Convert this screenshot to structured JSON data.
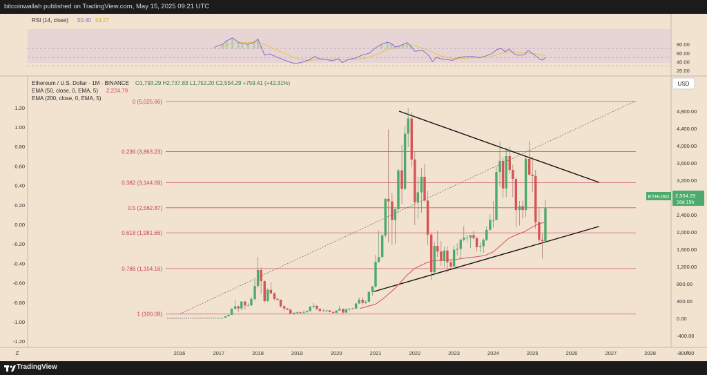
{
  "header": {
    "published_text": "bitcoinwallah published on TradingView.com, May 15, 2025 09:21 UTC"
  },
  "footer": {
    "brand": "TradingView"
  },
  "rsi_legend": {
    "name": "RSI (14, close)",
    "v1": "50.40",
    "v2": "54.27"
  },
  "price_legend": {
    "symbol": "Ethereum / U.S. Dollar · 1M · BINANCE",
    "ohlc": "O1,793.29  H2,737.83  L1,752.20  C2,554.29  +759.41 (+42.31%)",
    "ema50": "EMA (50, close, 0, EMA, 5)",
    "ema50_value": "2,224.79",
    "ema200": "EMA (200, close, 0, EMA, 5)"
  },
  "currency_button": "USD",
  "price_tag": {
    "symbol": "ETHUSD",
    "price": "2,554.29",
    "countdown": "16d 15h"
  },
  "corner_z": "Z",
  "corner_a": "A",
  "colors": {
    "up": "#4cab6c",
    "down": "#d65454",
    "fib": "#c8425e",
    "ema": "#d24f63",
    "rsi": "#8a6bc4",
    "rsi_ma": "#e6c34c",
    "bg": "#f2e2d0"
  },
  "chart_data": {
    "type": "candlestick",
    "y_right": {
      "min": -800,
      "max": 4800,
      "ticks": [
        "4,800.00",
        "4,400.00",
        "4,000.00",
        "3,600.00",
        "3,200.00",
        "2,800.00",
        "2,400.00",
        "2,000.00",
        "1,600.00",
        "1,200.00",
        "800.00",
        "400.00",
        "0.00",
        "-400.00",
        "-800.00"
      ]
    },
    "y_left": {
      "ticks": [
        "1.20",
        "1.00",
        "0.80",
        "0.60",
        "0.40",
        "0.20",
        "0.00",
        "-0.20",
        "-0.40",
        "-0.60",
        "-0.80",
        "-1.00",
        "-1.20"
      ]
    },
    "x_ticks": [
      "2016",
      "2017",
      "2018",
      "2019",
      "2020",
      "2021",
      "2022",
      "2023",
      "2024",
      "2025",
      "2026",
      "2027",
      "2028"
    ],
    "fib_levels": [
      {
        "ratio": 0,
        "price": 5025.66,
        "label": "0 (5,025.66)"
      },
      {
        "ratio": 0.236,
        "price": 3863.23,
        "label": "0.236 (3,863.23)"
      },
      {
        "ratio": 0.382,
        "price": 3144.09,
        "label": "0.382 (3,144.09)"
      },
      {
        "ratio": 0.5,
        "price": 2562.87,
        "label": "0.5 (2,562.87)"
      },
      {
        "ratio": 0.618,
        "price": 1981.66,
        "label": "0.618 (1,981.66)"
      },
      {
        "ratio": 0.786,
        "price": 1154.16,
        "label": "0.786 (1,154.16)"
      },
      {
        "ratio": 1,
        "price": 100.08,
        "label": "1 (100.08)"
      }
    ],
    "candles": [
      [
        2017.0,
        8,
        10,
        8,
        10
      ],
      [
        2017.08,
        10,
        17,
        9,
        16
      ],
      [
        2017.17,
        16,
        55,
        15,
        50
      ],
      [
        2017.25,
        50,
        100,
        45,
        80
      ],
      [
        2017.33,
        80,
        230,
        80,
        225
      ],
      [
        2017.42,
        225,
        420,
        200,
        280
      ],
      [
        2017.5,
        280,
        300,
        150,
        230
      ],
      [
        2017.58,
        230,
        400,
        190,
        390
      ],
      [
        2017.67,
        390,
        400,
        200,
        300
      ],
      [
        2017.75,
        300,
        350,
        290,
        300
      ],
      [
        2017.83,
        300,
        500,
        290,
        450
      ],
      [
        2017.92,
        450,
        900,
        410,
        750
      ],
      [
        2018.0,
        750,
        1420,
        700,
        1120
      ],
      [
        2018.08,
        1120,
        1180,
        570,
        860
      ],
      [
        2018.17,
        860,
        880,
        370,
        400
      ],
      [
        2018.25,
        400,
        700,
        380,
        660
      ],
      [
        2018.33,
        660,
        830,
        560,
        580
      ],
      [
        2018.42,
        580,
        600,
        420,
        450
      ],
      [
        2018.5,
        450,
        480,
        420,
        430
      ],
      [
        2018.58,
        430,
        440,
        250,
        280
      ],
      [
        2018.67,
        280,
        300,
        170,
        230
      ],
      [
        2018.75,
        230,
        240,
        190,
        200
      ],
      [
        2018.83,
        200,
        220,
        100,
        110
      ],
      [
        2018.92,
        110,
        140,
        80,
        130
      ],
      [
        2019.0,
        130,
        160,
        100,
        140
      ],
      [
        2019.08,
        140,
        160,
        100,
        135
      ],
      [
        2019.17,
        135,
        190,
        130,
        140
      ],
      [
        2019.25,
        140,
        190,
        140,
        170
      ],
      [
        2019.33,
        170,
        290,
        160,
        270
      ],
      [
        2019.42,
        270,
        360,
        230,
        290
      ],
      [
        2019.5,
        290,
        310,
        190,
        220
      ],
      [
        2019.58,
        220,
        240,
        160,
        170
      ],
      [
        2019.67,
        170,
        220,
        160,
        180
      ],
      [
        2019.75,
        180,
        200,
        150,
        185
      ],
      [
        2019.83,
        185,
        190,
        140,
        150
      ],
      [
        2019.92,
        150,
        160,
        115,
        130
      ],
      [
        2020.0,
        130,
        190,
        125,
        180
      ],
      [
        2020.08,
        180,
        290,
        180,
        220
      ],
      [
        2020.17,
        220,
        230,
        90,
        135
      ],
      [
        2020.25,
        135,
        230,
        130,
        210
      ],
      [
        2020.33,
        210,
        220,
        170,
        230
      ],
      [
        2020.42,
        230,
        250,
        220,
        225
      ],
      [
        2020.5,
        225,
        350,
        220,
        345
      ],
      [
        2020.58,
        345,
        490,
        340,
        430
      ],
      [
        2020.67,
        430,
        490,
        310,
        360
      ],
      [
        2020.75,
        360,
        420,
        330,
        385
      ],
      [
        2020.83,
        385,
        620,
        380,
        615
      ],
      [
        2020.92,
        615,
        750,
        530,
        740
      ],
      [
        2021.0,
        740,
        1470,
        710,
        1310
      ],
      [
        2021.08,
        1310,
        2040,
        1280,
        1420
      ],
      [
        2021.17,
        1420,
        1950,
        1400,
        1920
      ],
      [
        2021.25,
        1920,
        2780,
        1870,
        2770
      ],
      [
        2021.33,
        2770,
        4380,
        1750,
        2710
      ],
      [
        2021.42,
        2710,
        2900,
        1700,
        2280
      ],
      [
        2021.5,
        2280,
        2550,
        1720,
        2530
      ],
      [
        2021.58,
        2530,
        3460,
        2450,
        3430
      ],
      [
        2021.67,
        3430,
        4020,
        2650,
        3000
      ],
      [
        2021.75,
        3000,
        4460,
        2980,
        4280
      ],
      [
        2021.83,
        4280,
        4870,
        3970,
        4630
      ],
      [
        2021.92,
        4630,
        4780,
        3500,
        3680
      ],
      [
        2022.0,
        3680,
        3860,
        2160,
        2690
      ],
      [
        2022.08,
        2690,
        3280,
        2300,
        2920
      ],
      [
        2022.17,
        2920,
        3480,
        2450,
        3280
      ],
      [
        2022.25,
        3280,
        3580,
        2700,
        2730
      ],
      [
        2022.33,
        2730,
        2960,
        1700,
        1940
      ],
      [
        2022.42,
        1940,
        1970,
        880,
        1070
      ],
      [
        2022.5,
        1070,
        1780,
        1000,
        1680
      ],
      [
        2022.58,
        1680,
        2030,
        1420,
        1550
      ],
      [
        2022.67,
        1550,
        1790,
        1220,
        1330
      ],
      [
        2022.75,
        1330,
        1660,
        1190,
        1570
      ],
      [
        2022.83,
        1570,
        1680,
        1070,
        1300
      ],
      [
        2022.92,
        1300,
        1350,
        1150,
        1200
      ],
      [
        2023.0,
        1200,
        1680,
        1190,
        1590
      ],
      [
        2023.08,
        1590,
        1740,
        1460,
        1610
      ],
      [
        2023.17,
        1610,
        1850,
        1370,
        1820
      ],
      [
        2023.25,
        1820,
        2140,
        1780,
        1870
      ],
      [
        2023.33,
        1870,
        1930,
        1760,
        1870
      ],
      [
        2023.42,
        1870,
        1930,
        1630,
        1930
      ],
      [
        2023.5,
        1930,
        2030,
        1830,
        1860
      ],
      [
        2023.58,
        1860,
        1880,
        1550,
        1650
      ],
      [
        2023.67,
        1650,
        1760,
        1530,
        1670
      ],
      [
        2023.75,
        1670,
        1850,
        1520,
        1820
      ],
      [
        2023.83,
        1820,
        2130,
        1790,
        2050
      ],
      [
        2023.92,
        2050,
        2410,
        2030,
        2280
      ],
      [
        2024.0,
        2280,
        2720,
        2100,
        2280
      ],
      [
        2024.08,
        2280,
        3520,
        2270,
        3390
      ],
      [
        2024.17,
        3390,
        4090,
        3050,
        3650
      ],
      [
        2024.25,
        3650,
        3730,
        2800,
        3010
      ],
      [
        2024.33,
        3010,
        3950,
        2810,
        3760
      ],
      [
        2024.42,
        3760,
        3980,
        3350,
        3440
      ],
      [
        2024.5,
        3440,
        3560,
        2810,
        3230
      ],
      [
        2024.58,
        3230,
        3280,
        2110,
        2510
      ],
      [
        2024.67,
        2510,
        2720,
        2150,
        2600
      ],
      [
        2024.75,
        2600,
        2730,
        2310,
        2510
      ],
      [
        2024.83,
        2510,
        3750,
        2350,
        3700
      ],
      [
        2024.92,
        3700,
        4110,
        3300,
        3330
      ],
      [
        2025.0,
        3330,
        3740,
        2920,
        3300
      ],
      [
        2025.08,
        3300,
        3440,
        2080,
        2230
      ],
      [
        2025.17,
        2230,
        2550,
        1760,
        1820
      ],
      [
        2025.25,
        1820,
        1960,
        1380,
        1790
      ],
      [
        2025.33,
        1790,
        2740,
        1750,
        2554
      ]
    ],
    "ema50": [
      [
        2020.6,
        230
      ],
      [
        2021.0,
        330
      ],
      [
        2021.2,
        460
      ],
      [
        2021.5,
        700
      ],
      [
        2021.8,
        1000
      ],
      [
        2022.0,
        1160
      ],
      [
        2022.3,
        1290
      ],
      [
        2022.5,
        1340
      ],
      [
        2022.8,
        1350
      ],
      [
        2023.0,
        1360
      ],
      [
        2023.3,
        1400
      ],
      [
        2023.6,
        1430
      ],
      [
        2023.8,
        1460
      ],
      [
        2024.0,
        1540
      ],
      [
        2024.2,
        1700
      ],
      [
        2024.4,
        1860
      ],
      [
        2024.6,
        1940
      ],
      [
        2024.8,
        2010
      ],
      [
        2025.0,
        2120
      ],
      [
        2025.15,
        2190
      ],
      [
        2025.33,
        2225
      ]
    ],
    "trendlines": [
      {
        "name": "upper",
        "from": [
          2021.6,
          4800
        ],
        "to": [
          2026.7,
          3150
        ]
      },
      {
        "name": "lower",
        "from": [
          2020.95,
          620
        ],
        "to": [
          2026.7,
          2130
        ]
      },
      {
        "name": "diagonal",
        "from": [
          2016.0,
          100
        ],
        "to": [
          2027.6,
          5025
        ]
      }
    ],
    "rsi": {
      "name": "RSI (14, close)",
      "y_ticks": [
        "80.00",
        "60.00",
        "40.00",
        "20.00"
      ],
      "y_min": 20,
      "y_max": 90,
      "band_upper": 70,
      "band_mid": 50,
      "band_lower": 30,
      "values": [
        [
          2016.9,
          74
        ],
        [
          2017.1,
          80
        ],
        [
          2017.2,
          88
        ],
        [
          2017.35,
          95
        ],
        [
          2017.5,
          85
        ],
        [
          2017.6,
          82
        ],
        [
          2017.75,
          80
        ],
        [
          2017.9,
          85
        ],
        [
          2018.0,
          92
        ],
        [
          2018.08,
          75
        ],
        [
          2018.17,
          55
        ],
        [
          2018.3,
          58
        ],
        [
          2018.5,
          50
        ],
        [
          2018.7,
          43
        ],
        [
          2018.85,
          38
        ],
        [
          2018.95,
          36
        ],
        [
          2019.1,
          38
        ],
        [
          2019.3,
          44
        ],
        [
          2019.45,
          52
        ],
        [
          2019.55,
          47
        ],
        [
          2019.7,
          46
        ],
        [
          2019.9,
          42
        ],
        [
          2020.05,
          47
        ],
        [
          2020.15,
          38
        ],
        [
          2020.3,
          45
        ],
        [
          2020.5,
          49
        ],
        [
          2020.65,
          55
        ],
        [
          2020.85,
          60
        ],
        [
          2021.0,
          72
        ],
        [
          2021.15,
          80
        ],
        [
          2021.3,
          85
        ],
        [
          2021.4,
          82
        ],
        [
          2021.5,
          74
        ],
        [
          2021.6,
          76
        ],
        [
          2021.7,
          80
        ],
        [
          2021.8,
          84
        ],
        [
          2021.9,
          76
        ],
        [
          2022.0,
          64
        ],
        [
          2022.2,
          66
        ],
        [
          2022.35,
          55
        ],
        [
          2022.45,
          40
        ],
        [
          2022.55,
          50
        ],
        [
          2022.7,
          46
        ],
        [
          2022.85,
          45
        ],
        [
          2022.95,
          43
        ],
        [
          2023.1,
          49
        ],
        [
          2023.3,
          52
        ],
        [
          2023.5,
          52
        ],
        [
          2023.65,
          49
        ],
        [
          2023.8,
          53
        ],
        [
          2023.95,
          58
        ],
        [
          2024.1,
          68
        ],
        [
          2024.2,
          71
        ],
        [
          2024.3,
          63
        ],
        [
          2024.4,
          69
        ],
        [
          2024.55,
          57
        ],
        [
          2024.65,
          55
        ],
        [
          2024.8,
          56
        ],
        [
          2024.88,
          66
        ],
        [
          2024.96,
          62
        ],
        [
          2025.1,
          52
        ],
        [
          2025.2,
          45
        ],
        [
          2025.27,
          44
        ],
        [
          2025.33,
          50.4
        ]
      ],
      "ma": [
        [
          2017.0,
          70
        ],
        [
          2017.3,
          82
        ],
        [
          2017.6,
          84
        ],
        [
          2017.9,
          84
        ],
        [
          2018.1,
          82
        ],
        [
          2018.4,
          70
        ],
        [
          2018.7,
          58
        ],
        [
          2019.0,
          47
        ],
        [
          2019.3,
          43
        ],
        [
          2019.6,
          45
        ],
        [
          2019.9,
          46
        ],
        [
          2020.2,
          44
        ],
        [
          2020.5,
          45
        ],
        [
          2020.8,
          50
        ],
        [
          2021.0,
          56
        ],
        [
          2021.3,
          68
        ],
        [
          2021.6,
          76
        ],
        [
          2021.9,
          79
        ],
        [
          2022.1,
          74
        ],
        [
          2022.4,
          64
        ],
        [
          2022.7,
          52
        ],
        [
          2023.0,
          48
        ],
        [
          2023.3,
          48
        ],
        [
          2023.6,
          50
        ],
        [
          2023.9,
          51
        ],
        [
          2024.1,
          56
        ],
        [
          2024.3,
          62
        ],
        [
          2024.5,
          63
        ],
        [
          2024.8,
          60
        ],
        [
          2025.0,
          59
        ],
        [
          2025.2,
          56
        ],
        [
          2025.33,
          54.27
        ]
      ]
    }
  }
}
